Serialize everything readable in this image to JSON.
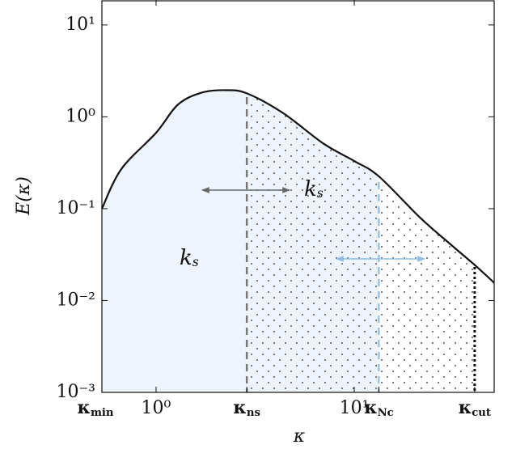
{
  "chart_data": {
    "type": "line",
    "xlabel": "κ",
    "ylabel": "E(κ)",
    "log_x": true,
    "log_y": true,
    "xlim": [
      0.533,
      50.8
    ],
    "ylim": [
      0.001,
      18.7
    ],
    "xticks": [
      {
        "value": 0.533,
        "label": "κmin"
      },
      {
        "value": 1,
        "label": "10⁰"
      },
      {
        "value": 2.87,
        "label": "κns"
      },
      {
        "value": 10,
        "label": "10¹"
      },
      {
        "value": 13.3,
        "label": "κNc"
      },
      {
        "value": 40.5,
        "label": "κcut"
      }
    ],
    "yticks": [
      {
        "value": 0.001,
        "label": "10⁻³"
      },
      {
        "value": 0.01,
        "label": "10⁻²"
      },
      {
        "value": 0.1,
        "label": "10⁻¹"
      },
      {
        "value": 1,
        "label": "10⁰"
      },
      {
        "value": 10,
        "label": "10¹"
      }
    ],
    "x": [
      0.533,
      0.668,
      1,
      1.29,
      1.71,
      2.26,
      2.87,
      4.37,
      7,
      10,
      13.3,
      21.6,
      31.4,
      40.5,
      50.8
    ],
    "series": [
      {
        "color": "#111111",
        "values": [
          0.1,
          0.27,
          0.67,
          1.36,
          1.84,
          1.95,
          1.8,
          1.1,
          0.51,
          0.33,
          0.225,
          0.079,
          0.039,
          0.0244,
          0.0156
        ]
      }
    ],
    "annotations": [
      {
        "text": "ks",
        "color": "#9a9a9a"
      },
      {
        "text": "ks",
        "color": "#9cc6ee"
      }
    ]
  }
}
